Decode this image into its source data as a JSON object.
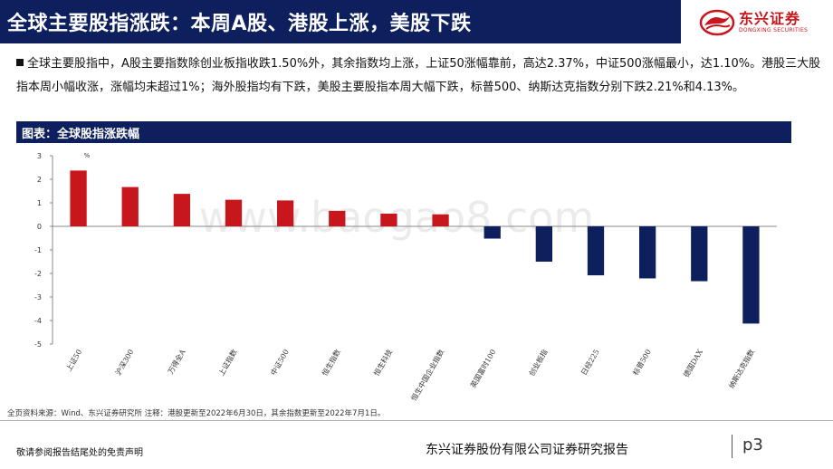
{
  "header": {
    "title": "全球主要股指涨跌：本周A股、港股上涨，美股下跌",
    "logo_cn": "东兴证券",
    "logo_en": "DONGXING SECURITIES",
    "logo_icon": "dongxing-logo-icon"
  },
  "summary": {
    "text": "全球主要股指中，A股主要指数除创业板指收跌1.50%外，其余指数均上涨，上证50涨幅靠前，高达2.37%，中证500涨幅最小，达1.10%。港股三大股指本周小幅收涨，涨幅均未超过1%；海外股指均有下跌，美股主要股指本周大幅下跌，标普500、纳斯达克指数分别下跌2.21%和4.13%。"
  },
  "chart_title": "图表：全球股指涨跌幅",
  "chart_data": {
    "type": "bar",
    "categories": [
      "上证50",
      "沪深300",
      "万得全A",
      "上证指数",
      "中证500",
      "恒生指数",
      "恒生科技",
      "恒生中国企业指数",
      "英国富时100",
      "创业板指",
      "日经225",
      "标普500",
      "德国DAX",
      "纳斯达克指数"
    ],
    "values": [
      2.37,
      1.67,
      1.38,
      1.13,
      1.1,
      0.66,
      0.54,
      0.51,
      -0.52,
      -1.5,
      -2.08,
      -2.21,
      -2.33,
      -4.13
    ],
    "unit_label": "%",
    "ylim": [
      -5,
      3
    ],
    "yticks": [
      3,
      2,
      1,
      0,
      -1,
      -2,
      -3,
      -4,
      -5
    ],
    "colors": {
      "positive": "#c8161d",
      "negative": "#0d1f5c"
    },
    "grid": false,
    "legend": "none"
  },
  "watermark": "www.baogao8.com",
  "source": "全页资料来源：Wind、东兴证券研究所 注释：港股更新至2022年6月30日，其余指数更新至2022年7月1日。",
  "footer": {
    "disclaimer": "敬请参阅报告结尾处的免责声明",
    "company": "东兴证券股份有限公司证券研究报告",
    "page": "p3"
  }
}
